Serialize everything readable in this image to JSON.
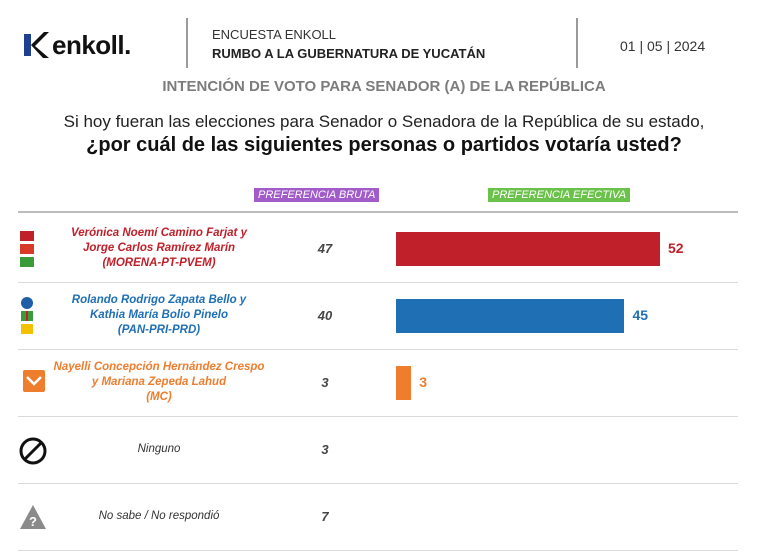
{
  "header": {
    "logo_text": "enkoll.",
    "survey_line1": "ENCUESTA ENKOLL",
    "survey_line2": "RUMBO A LA GUBERNATURA DE YUCATÁN",
    "date": "01 | 05 | 2024"
  },
  "subtitle": "INTENCIÓN DE VOTO PARA SENADOR (A) DE LA REPÚBLICA",
  "question_line1": "Si hoy fueran las elecciones para Senador o Senadora de la República de su estado,",
  "question_line2": "¿por cuál de las siguientes personas o partidos votaría usted?",
  "columns": {
    "bruta": "PREFERENCIA BRUTA",
    "efectiva": "PREFERENCIA EFECTIVA"
  },
  "colors": {
    "morena": "#c0202a",
    "pan": "#1f6fb5",
    "mc": "#ef7d2e",
    "muted": "#444444"
  },
  "chart_data": {
    "type": "bar",
    "orientation": "horizontal",
    "categories": [
      "Verónica Noemí Camino Farjat y Jorge Carlos Ramírez Marín (MORENA-PT-PVEM)",
      "Rolando Rodrigo Zapata Bello y Kathia María Bolio Pinelo (PAN-PRI-PRD)",
      "Nayelli Concepción Hernández Crespo y Mariana Zepeda Lahud (MC)",
      "Ninguno",
      "No sabe / No respondió"
    ],
    "series": [
      {
        "name": "PREFERENCIA BRUTA",
        "values": [
          47,
          40,
          3,
          3,
          7
        ]
      },
      {
        "name": "PREFERENCIA EFECTIVA",
        "values": [
          52,
          45,
          3,
          null,
          null
        ]
      }
    ],
    "xlim": [
      0,
      55
    ],
    "grid": false,
    "legend": "top"
  },
  "rows": [
    {
      "lines": [
        "Verónica Noemí Camino Farjat y",
        "Jorge Carlos Ramírez Marín",
        "(MORENA-PT-PVEM)"
      ],
      "bruta": "47",
      "efectiva": "52",
      "color": "#c0202a",
      "icon": "morena-pt-pvem-logos-icon"
    },
    {
      "lines": [
        "Rolando Rodrigo Zapata Bello y",
        "Kathia María Bolio Pinelo",
        "(PAN-PRI-PRD)"
      ],
      "bruta": "40",
      "efectiva": "45",
      "color": "#1f6fb5",
      "icon": "pan-pri-prd-logos-icon"
    },
    {
      "lines": [
        "Nayelli Concepción Hernández Crespo",
        "y Mariana Zepeda Lahud",
        "(MC)"
      ],
      "bruta": "3",
      "efectiva": "3",
      "color": "#ef7d2e",
      "icon": "mc-logo-icon"
    },
    {
      "lines": [
        "Ninguno"
      ],
      "bruta": "3",
      "efectiva": "",
      "color": "#444444",
      "icon": "prohibited-icon"
    },
    {
      "lines": [
        "No sabe / No respondió"
      ],
      "bruta": "7",
      "efectiva": "",
      "color": "#444444",
      "icon": "warning-question-icon"
    }
  ]
}
